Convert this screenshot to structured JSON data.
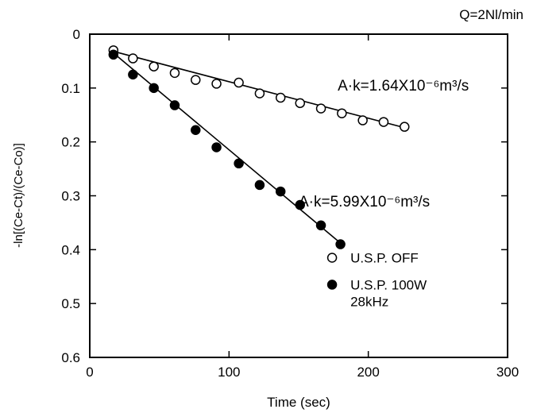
{
  "chart_data": {
    "type": "scatter",
    "title": "",
    "condition_label": "Q=2Nl/min",
    "xlabel": "Time (sec)",
    "ylabel": "-ln[(Ce-Ct)/(Ce-Co)]",
    "xlim": [
      0,
      300
    ],
    "ylim": [
      0,
      0.6
    ],
    "y_inverted": true,
    "grid": false,
    "x_ticks": [
      0,
      100,
      200,
      300
    ],
    "x_tick_labels": [
      "0",
      "100",
      "200",
      "300"
    ],
    "y_ticks": [
      0,
      0.1,
      0.2,
      0.3,
      0.4,
      0.5,
      0.6
    ],
    "y_tick_labels": [
      "0",
      "0.1",
      "0.2",
      "0.3",
      "0.4",
      "0.5",
      "0.6"
    ],
    "legend_position": "bottom-right",
    "series": [
      {
        "name": "U.S.P. OFF",
        "marker": "open-circle",
        "x": [
          17,
          31,
          46,
          61,
          76,
          91,
          107,
          122,
          137,
          151,
          166,
          181,
          196,
          211,
          226
        ],
        "y": [
          0.03,
          0.045,
          0.06,
          0.072,
          0.085,
          0.092,
          0.09,
          0.11,
          0.118,
          0.128,
          0.138,
          0.147,
          0.16,
          0.163,
          0.172
        ],
        "fit_line": {
          "x": [
            17,
            228
          ],
          "y": [
            0.032,
            0.175
          ]
        },
        "annotation": "A·k=1.64X10⁻⁶m³/s"
      },
      {
        "name": "U.S.P. 100W 28kHz",
        "name_lines": [
          "U.S.P. 100W",
          "28kHz"
        ],
        "marker": "filled-circle",
        "x": [
          17,
          31,
          46,
          61,
          76,
          91,
          107,
          122,
          137,
          151,
          166,
          180
        ],
        "y": [
          0.038,
          0.075,
          0.1,
          0.132,
          0.178,
          0.21,
          0.24,
          0.28,
          0.292,
          0.317,
          0.355,
          0.39
        ],
        "fit_line": {
          "x": [
            17,
            181
          ],
          "y": [
            0.035,
            0.39
          ]
        },
        "annotation": "A·k=5.99X10⁻⁶m³/s"
      }
    ]
  }
}
